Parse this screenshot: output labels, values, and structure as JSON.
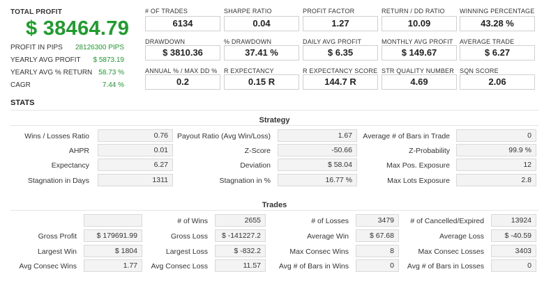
{
  "summary": {
    "total_profit_label": "TOTAL PROFIT",
    "total_profit_value": "$ 38464.79",
    "rows": [
      {
        "label": "PROFIT IN PIPS",
        "value": "28126300 PIPS"
      },
      {
        "label": "YEARLY AVG PROFIT",
        "value": "$ 5873.19"
      },
      {
        "label": "YEARLY AVG % RETURN",
        "value": "58.73 %"
      },
      {
        "label": "CAGR",
        "value": "7.44 %"
      }
    ]
  },
  "cards": [
    {
      "label": "# OF TRADES",
      "value": "6134"
    },
    {
      "label": "SHARPE RATIO",
      "value": "0.04"
    },
    {
      "label": "PROFIT FACTOR",
      "value": "1.27"
    },
    {
      "label": "RETURN / DD RATIO",
      "value": "10.09"
    },
    {
      "label": "WINNING PERCENTAGE",
      "value": "43.28 %"
    },
    {
      "label": "DRAWDOWN",
      "value": "$ 3810.36"
    },
    {
      "label": "% DRAWDOWN",
      "value": "37.41 %"
    },
    {
      "label": "DAILY AVG PROFIT",
      "value": "$ 6.35"
    },
    {
      "label": "MONTHLY AVG PROFIT",
      "value": "$ 149.67"
    },
    {
      "label": "AVERAGE TRADE",
      "value": "$ 6.27"
    },
    {
      "label": "ANNUAL % / MAX DD %",
      "value": "0.2"
    },
    {
      "label": "R EXPECTANCY",
      "value": "0.15 R"
    },
    {
      "label": "R EXPECTANCY SCORE",
      "value": "144.7 R"
    },
    {
      "label": "STR QUALITY NUMBER",
      "value": "4.69"
    },
    {
      "label": "SQN SCORE",
      "value": "2.06"
    }
  ],
  "stats_title": "STATS",
  "strategy": {
    "title": "Strategy",
    "rows": [
      [
        {
          "label": "Wins / Losses Ratio",
          "value": "0.76"
        },
        {
          "label": "Payout Ratio (Avg Win/Loss)",
          "value": "1.67"
        },
        {
          "label": "Average # of Bars in Trade",
          "value": "0"
        }
      ],
      [
        {
          "label": "AHPR",
          "value": "0.01"
        },
        {
          "label": "Z-Score",
          "value": "-50.66"
        },
        {
          "label": "Z-Probability",
          "value": "99.9 %"
        }
      ],
      [
        {
          "label": "Expectancy",
          "value": "6.27"
        },
        {
          "label": "Deviation",
          "value": "$ 58.04"
        },
        {
          "label": "Max Pos. Exposure",
          "value": "12"
        }
      ],
      [
        {
          "label": "Stagnation in Days",
          "value": "1311"
        },
        {
          "label": "Stagnation in %",
          "value": "16.77 %"
        },
        {
          "label": "Max Lots Exposure",
          "value": "2.8"
        }
      ]
    ]
  },
  "trades": {
    "title": "Trades",
    "rows": [
      [
        {
          "label": "",
          "value": ""
        },
        {
          "label": "# of Wins",
          "value": "2655"
        },
        {
          "label": "# of Losses",
          "value": "3479"
        },
        {
          "label": "# of Cancelled/Expired",
          "value": "13924"
        }
      ],
      [
        {
          "label": "Gross Profit",
          "value": "$ 179691.99"
        },
        {
          "label": "Gross Loss",
          "value": "$ -141227.2"
        },
        {
          "label": "Average Win",
          "value": "$ 67.68"
        },
        {
          "label": "Average Loss",
          "value": "$ -40.59"
        }
      ],
      [
        {
          "label": "Largest Win",
          "value": "$ 1804"
        },
        {
          "label": "Largest Loss",
          "value": "$ -832.2"
        },
        {
          "label": "Max Consec Wins",
          "value": "8"
        },
        {
          "label": "Max Consec Losses",
          "value": "3403"
        }
      ],
      [
        {
          "label": "Avg Consec Wins",
          "value": "1.77"
        },
        {
          "label": "Avg Consec Loss",
          "value": "11.57"
        },
        {
          "label": "Avg # of Bars in Wins",
          "value": "0"
        },
        {
          "label": "Avg # of Bars in Losses",
          "value": "0"
        }
      ]
    ]
  }
}
